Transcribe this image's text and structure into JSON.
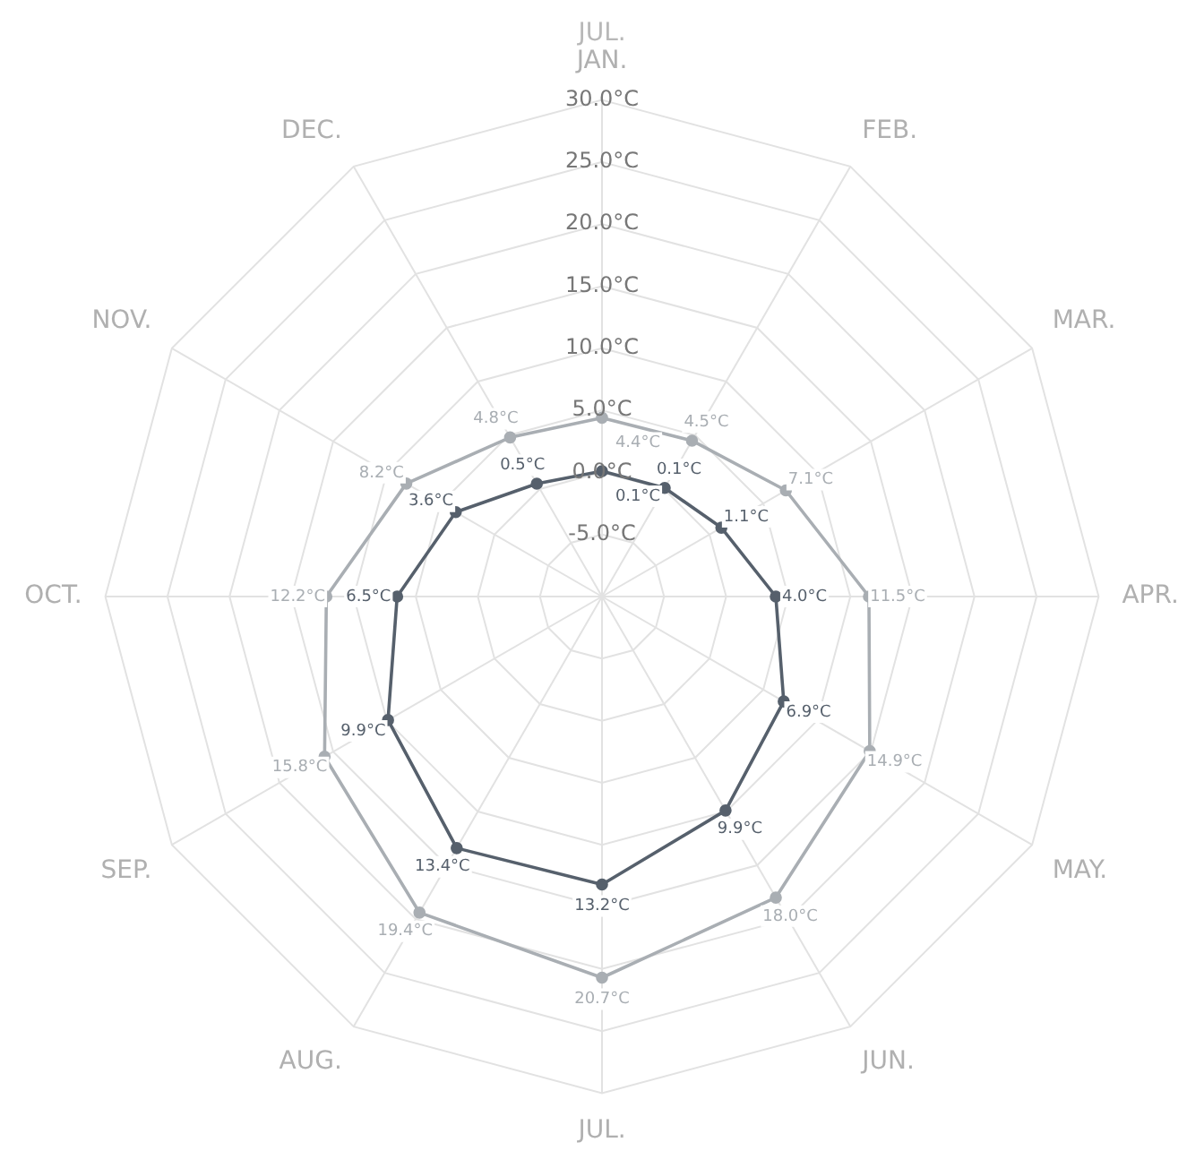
{
  "chart_data": {
    "type": "radar",
    "categories": [
      "JAN.",
      "FEB.",
      "MAR.",
      "APR.",
      "MAY.",
      "JUN.",
      "JUL.",
      "AUG.",
      "SEP.",
      "OCT.",
      "NOV.",
      "DEC."
    ],
    "series": [
      {
        "color": "#a9aeb3",
        "values": [
          4.4,
          4.5,
          7.1,
          11.5,
          14.9,
          18.0,
          20.7,
          19.4,
          15.8,
          12.2,
          8.2,
          4.8
        ],
        "value_labels": [
          "4.4°C",
          "4.5°C",
          "7.1°C",
          "11.5°C",
          "14.9°C",
          "18.0°C",
          "20.7°C",
          "19.4°C",
          "15.8°C",
          "12.2°C",
          "8.2°C",
          "4.8°C"
        ]
      },
      {
        "color": "#56606c",
        "values": [
          0.1,
          0.1,
          1.1,
          4.0,
          6.9,
          9.9,
          13.2,
          13.4,
          9.9,
          6.5,
          3.6,
          0.5
        ],
        "value_labels": [
          "0.1°C",
          "0.1°C",
          "1.1°C",
          "4.0°C",
          "6.9°C",
          "9.9°C",
          "13.2°C",
          "13.4°C",
          "9.9°C",
          "6.5°C",
          "3.6°C",
          "0.5°C"
        ]
      }
    ],
    "ylim": [
      -10,
      30
    ],
    "yticks": [
      {
        "value": -5,
        "label": "-5.0°C"
      },
      {
        "value": 0,
        "label": "0.0°C"
      },
      {
        "value": 5,
        "label": "5.0°C"
      },
      {
        "value": 10,
        "label": "10.0°C"
      },
      {
        "value": 15,
        "label": "15.0°C"
      },
      {
        "value": 20,
        "label": "20.0°C"
      },
      {
        "value": 25,
        "label": "25.0°C"
      },
      {
        "value": 30,
        "label": "30.0°C"
      }
    ],
    "grid": true,
    "legend": false,
    "marker": "circle",
    "line_style": "solid",
    "annotations": [
      "JUL."
    ]
  }
}
